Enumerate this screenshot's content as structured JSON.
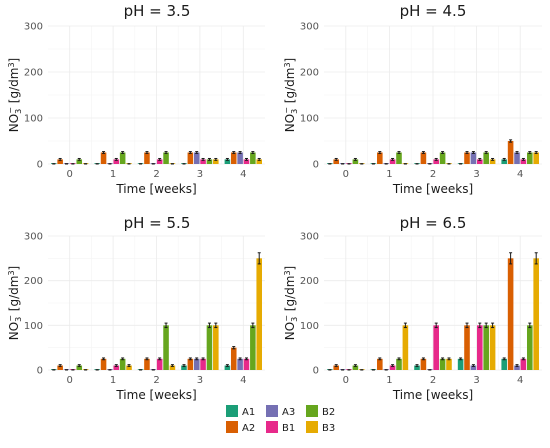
{
  "colors": {
    "A1": "#1b9e77",
    "A2": "#d95f02",
    "A3": "#7570b3",
    "B1": "#e7298a",
    "B2": "#66a61e",
    "B3": "#e6ab02"
  },
  "chart_data": [
    {
      "type": "bar",
      "title": "pH = 3.5",
      "xlabel": "Time [weeks]",
      "ylabel": "NO3- [g/dm3]",
      "ylim": [
        0,
        300
      ],
      "yticks": [
        0,
        100,
        200,
        300
      ],
      "categories": [
        "0",
        "1",
        "2",
        "3",
        "4"
      ],
      "series": [
        {
          "name": "A1",
          "values": [
            0,
            0,
            0,
            0,
            10
          ]
        },
        {
          "name": "A2",
          "values": [
            10,
            25,
            25,
            25,
            25
          ]
        },
        {
          "name": "A3",
          "values": [
            0,
            0,
            0,
            25,
            25
          ]
        },
        {
          "name": "B1",
          "values": [
            0,
            10,
            10,
            10,
            10
          ]
        },
        {
          "name": "B2",
          "values": [
            10,
            25,
            25,
            10,
            25
          ]
        },
        {
          "name": "B3",
          "values": [
            0,
            0,
            0,
            10,
            10
          ]
        }
      ]
    },
    {
      "type": "bar",
      "title": "pH = 4.5",
      "xlabel": "Time [weeks]",
      "ylabel": "NO3- [g/dm3]",
      "ylim": [
        0,
        300
      ],
      "yticks": [
        0,
        100,
        200,
        300
      ],
      "categories": [
        "0",
        "1",
        "2",
        "3",
        "4"
      ],
      "series": [
        {
          "name": "A1",
          "values": [
            0,
            0,
            0,
            0,
            10
          ]
        },
        {
          "name": "A2",
          "values": [
            10,
            25,
            25,
            25,
            50
          ]
        },
        {
          "name": "A3",
          "values": [
            0,
            0,
            0,
            25,
            25
          ]
        },
        {
          "name": "B1",
          "values": [
            0,
            10,
            10,
            10,
            10
          ]
        },
        {
          "name": "B2",
          "values": [
            10,
            25,
            25,
            25,
            25
          ]
        },
        {
          "name": "B3",
          "values": [
            0,
            0,
            0,
            10,
            25
          ]
        }
      ]
    },
    {
      "type": "bar",
      "title": "pH = 5.5",
      "xlabel": "Time [weeks]",
      "ylabel": "NO3- [g/dm3]",
      "ylim": [
        0,
        300
      ],
      "yticks": [
        0,
        100,
        200,
        300
      ],
      "categories": [
        "0",
        "1",
        "2",
        "3",
        "4"
      ],
      "series": [
        {
          "name": "A1",
          "values": [
            0,
            0,
            0,
            10,
            10
          ]
        },
        {
          "name": "A2",
          "values": [
            10,
            25,
            25,
            25,
            50
          ]
        },
        {
          "name": "A3",
          "values": [
            0,
            0,
            0,
            25,
            25
          ]
        },
        {
          "name": "B1",
          "values": [
            0,
            10,
            25,
            25,
            25
          ]
        },
        {
          "name": "B2",
          "values": [
            10,
            25,
            100,
            100,
            100
          ]
        },
        {
          "name": "B3",
          "values": [
            0,
            10,
            10,
            100,
            250
          ]
        }
      ]
    },
    {
      "type": "bar",
      "title": "pH = 6.5",
      "xlabel": "Time [weeks]",
      "ylabel": "NO3- [g/dm3]",
      "ylim": [
        0,
        300
      ],
      "yticks": [
        0,
        100,
        200,
        300
      ],
      "categories": [
        "0",
        "1",
        "2",
        "3",
        "4"
      ],
      "series": [
        {
          "name": "A1",
          "values": [
            0,
            0,
            10,
            25,
            25
          ]
        },
        {
          "name": "A2",
          "values": [
            10,
            25,
            25,
            100,
            250
          ]
        },
        {
          "name": "A3",
          "values": [
            0,
            0,
            0,
            10,
            10
          ]
        },
        {
          "name": "B1",
          "values": [
            0,
            10,
            100,
            100,
            25
          ]
        },
        {
          "name": "B2",
          "values": [
            10,
            25,
            25,
            100,
            100
          ]
        },
        {
          "name": "B3",
          "values": [
            0,
            100,
            25,
            100,
            250
          ]
        }
      ]
    }
  ],
  "legend": {
    "placement": "bottom",
    "entries": [
      "A1",
      "A2",
      "A3",
      "B1",
      "B2",
      "B3"
    ]
  }
}
